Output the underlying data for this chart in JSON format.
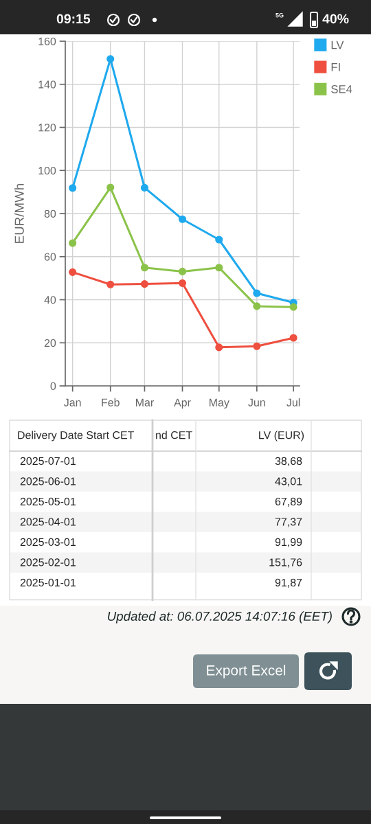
{
  "chart_data": {
    "type": "line",
    "ylabel": "EUR/MWh",
    "x": [
      "2025-01-01",
      "2025-02-01",
      "2025-03-01",
      "2025-04-01",
      "2025-05-01",
      "2025-06-01",
      "2025-07-01"
    ],
    "xlim": [
      "2024-12-26",
      "2025-07-06"
    ],
    "xticks": [
      {
        "value": "2025-01-01",
        "label": "Jan"
      },
      {
        "value": "2025-02-01",
        "label": "Feb"
      },
      {
        "value": "2025-03-01",
        "label": "Mar"
      },
      {
        "value": "2025-04-01",
        "label": "Apr"
      },
      {
        "value": "2025-05-01",
        "label": "May"
      },
      {
        "value": "2025-06-01",
        "label": "Jun"
      },
      {
        "value": "2025-07-01",
        "label": "Jul"
      }
    ],
    "ylim": [
      0,
      160
    ],
    "yticks": [
      0,
      20,
      40,
      60,
      80,
      100,
      120,
      140,
      160
    ],
    "series": [
      {
        "name": "LV",
        "color": "#1fa9ee",
        "values": [
          91.87,
          151.76,
          91.99,
          77.37,
          67.89,
          43.01,
          38.68
        ]
      },
      {
        "name": "FI",
        "color": "#ee4f3f",
        "values": [
          52.8,
          47.1,
          47.3,
          47.7,
          17.9,
          18.4,
          22.3
        ]
      },
      {
        "name": "SE4",
        "color": "#8bc34a",
        "values": [
          66.3,
          92.1,
          54.9,
          53.1,
          54.9,
          37.0,
          36.6
        ]
      }
    ],
    "marker": "circle",
    "line_style": "solid",
    "grid": true,
    "legend": "top right",
    "annotations": [
      "09:15",
      "5G",
      "40%",
      "Delivery Date Start CET",
      "nd CET",
      "LV (EUR)",
      "Updated at: 06.07.2025 14:07:16 (EET)",
      "Export Excel",
      "2025-07-01",
      "2025-06-01",
      "2025-05-01",
      "2025-04-01",
      "2025-03-01",
      "2025-02-01",
      "2025-01-01",
      "38,68",
      "43,01",
      "67,89",
      "77,37",
      "91,99",
      "151,76",
      "91,87"
    ]
  }
}
